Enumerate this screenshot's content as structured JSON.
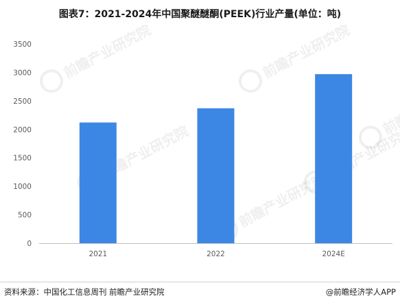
{
  "header": {
    "title": "图表7：2021-2024年中国聚醚醚酮(PEEK)行业产量(单位：吨)"
  },
  "footer": {
    "source": "资料来源：中国化工信息周刊 前瞻产业研究院",
    "brand": "@前瞻经济学人APP"
  },
  "watermark": {
    "text": "前瞻产业研究院"
  },
  "colors": {
    "bar": "#3d87e4",
    "axis": "#bfbfbf",
    "tick_text": "#595959"
  },
  "chart_data": {
    "type": "bar",
    "title": "图表7：2021-2024年中国聚醚醚酮(PEEK)行业产量(单位：吨)",
    "categories": [
      "2021",
      "2022",
      "2024E"
    ],
    "values": [
      2120,
      2370,
      2970
    ],
    "ylim": [
      0,
      3500
    ],
    "yticks": [
      0,
      500,
      1000,
      1500,
      2000,
      2500,
      3000,
      3500
    ],
    "xlabel": "",
    "ylabel": "",
    "grid": false,
    "legend": "none"
  }
}
